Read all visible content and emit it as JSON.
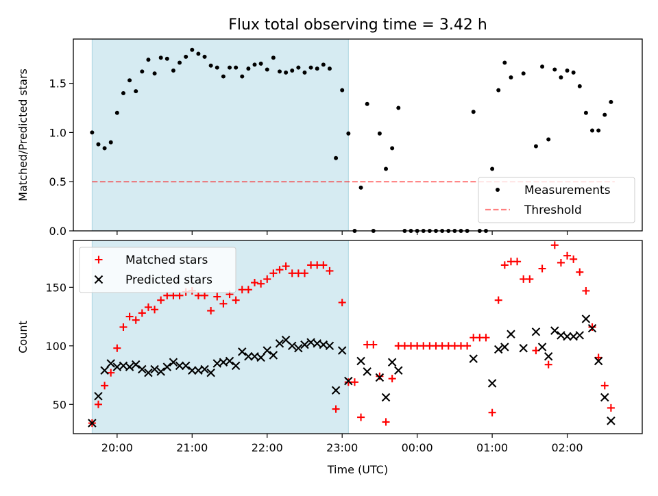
{
  "title": "Flux total observing time = 3.42 h",
  "chart_data": [
    {
      "type": "scatter",
      "panel": "top",
      "ylabel": "Matched/Predicted stars",
      "ylim": [
        0,
        1.95
      ],
      "yticks": [
        0.0,
        0.5,
        1.0,
        1.5
      ],
      "ytick_labels": [
        "0.0",
        "0.5",
        "1.0",
        "1.5"
      ],
      "shaded_span": [
        "19:40",
        "23:05"
      ],
      "threshold": 0.5,
      "threshold_x_range": [
        "19:40",
        "02:38"
      ],
      "legend": {
        "placement": "lower-right",
        "entries": [
          "Measurements",
          "Threshold"
        ]
      },
      "series": [
        {
          "name": "Measurements",
          "marker": "dot",
          "color": "#000000",
          "points": [
            [
              "19:40",
              1.0
            ],
            [
              "19:45",
              0.88
            ],
            [
              "19:50",
              0.84
            ],
            [
              "19:55",
              0.9
            ],
            [
              "20:00",
              1.2
            ],
            [
              "20:05",
              1.4
            ],
            [
              "20:10",
              1.53
            ],
            [
              "20:15",
              1.42
            ],
            [
              "20:20",
              1.62
            ],
            [
              "20:25",
              1.74
            ],
            [
              "20:30",
              1.6
            ],
            [
              "20:35",
              1.76
            ],
            [
              "20:40",
              1.75
            ],
            [
              "20:45",
              1.63
            ],
            [
              "20:50",
              1.71
            ],
            [
              "20:55",
              1.77
            ],
            [
              "21:00",
              1.84
            ],
            [
              "21:05",
              1.8
            ],
            [
              "21:10",
              1.77
            ],
            [
              "21:15",
              1.68
            ],
            [
              "21:20",
              1.66
            ],
            [
              "21:25",
              1.57
            ],
            [
              "21:30",
              1.66
            ],
            [
              "21:35",
              1.66
            ],
            [
              "21:40",
              1.57
            ],
            [
              "21:45",
              1.65
            ],
            [
              "21:50",
              1.69
            ],
            [
              "21:55",
              1.7
            ],
            [
              "22:00",
              1.64
            ],
            [
              "22:05",
              1.76
            ],
            [
              "22:10",
              1.62
            ],
            [
              "22:15",
              1.61
            ],
            [
              "22:20",
              1.63
            ],
            [
              "22:25",
              1.66
            ],
            [
              "22:30",
              1.61
            ],
            [
              "22:35",
              1.66
            ],
            [
              "22:40",
              1.65
            ],
            [
              "22:45",
              1.69
            ],
            [
              "22:50",
              1.65
            ],
            [
              "22:55",
              0.74
            ],
            [
              "23:00",
              1.43
            ],
            [
              "23:05",
              0.99
            ],
            [
              "23:10",
              0.0
            ],
            [
              "23:15",
              0.44
            ],
            [
              "23:20",
              1.29
            ],
            [
              "23:25",
              0.0
            ],
            [
              "23:30",
              0.99
            ],
            [
              "23:35",
              0.63
            ],
            [
              "23:40",
              0.84
            ],
            [
              "23:45",
              1.25
            ],
            [
              "23:50",
              0.0
            ],
            [
              "23:55",
              0.0
            ],
            [
              "00:00",
              0.0
            ],
            [
              "00:05",
              0.0
            ],
            [
              "00:10",
              0.0
            ],
            [
              "00:15",
              0.0
            ],
            [
              "00:20",
              0.0
            ],
            [
              "00:25",
              0.0
            ],
            [
              "00:30",
              0.0
            ],
            [
              "00:35",
              0.0
            ],
            [
              "00:40",
              0.0
            ],
            [
              "00:45",
              1.21
            ],
            [
              "00:50",
              0.0
            ],
            [
              "00:55",
              0.0
            ],
            [
              "01:00",
              0.63
            ],
            [
              "01:05",
              1.43
            ],
            [
              "01:10",
              1.71
            ],
            [
              "01:15",
              1.56
            ],
            [
              "01:25",
              1.6
            ],
            [
              "01:35",
              0.86
            ],
            [
              "01:40",
              1.67
            ],
            [
              "01:45",
              0.93
            ],
            [
              "01:50",
              1.64
            ],
            [
              "01:55",
              1.56
            ],
            [
              "02:00",
              1.63
            ],
            [
              "02:05",
              1.61
            ],
            [
              "02:10",
              1.47
            ],
            [
              "02:15",
              1.2
            ],
            [
              "02:20",
              1.02
            ],
            [
              "02:25",
              1.02
            ],
            [
              "02:30",
              1.18
            ],
            [
              "02:35",
              1.31
            ]
          ]
        }
      ]
    },
    {
      "type": "scatter",
      "panel": "bottom",
      "xlabel": "Time (UTC)",
      "ylabel": "Count",
      "ylim": [
        25,
        190
      ],
      "yticks": [
        50,
        100,
        150
      ],
      "ytick_labels": [
        "50",
        "100",
        "150"
      ],
      "xticks": [
        "20:00",
        "21:00",
        "22:00",
        "23:00",
        "00:00",
        "01:00",
        "02:00"
      ],
      "shaded_span": [
        "19:40",
        "23:05"
      ],
      "legend": {
        "placement": "upper-left",
        "entries": [
          "Matched stars",
          "Predicted stars"
        ]
      },
      "series": [
        {
          "name": "Matched stars",
          "marker": "plus",
          "color": "#ff0000",
          "points": [
            [
              "19:40",
              34
            ],
            [
              "19:45",
              50
            ],
            [
              "19:50",
              66
            ],
            [
              "19:55",
              77
            ],
            [
              "20:00",
              98
            ],
            [
              "20:05",
              116
            ],
            [
              "20:10",
              125
            ],
            [
              "20:15",
              122
            ],
            [
              "20:20",
              128
            ],
            [
              "20:25",
              133
            ],
            [
              "20:30",
              131
            ],
            [
              "20:35",
              139
            ],
            [
              "20:40",
              143
            ],
            [
              "20:45",
              143
            ],
            [
              "20:50",
              143
            ],
            [
              "20:55",
              146
            ],
            [
              "21:00",
              147
            ],
            [
              "21:05",
              143
            ],
            [
              "21:10",
              143
            ],
            [
              "21:15",
              130
            ],
            [
              "21:20",
              142
            ],
            [
              "21:25",
              136
            ],
            [
              "21:30",
              144
            ],
            [
              "21:35",
              139
            ],
            [
              "21:40",
              148
            ],
            [
              "21:45",
              148
            ],
            [
              "21:50",
              154
            ],
            [
              "21:55",
              153
            ],
            [
              "22:00",
              157
            ],
            [
              "22:05",
              162
            ],
            [
              "22:10",
              165
            ],
            [
              "22:15",
              168
            ],
            [
              "22:20",
              162
            ],
            [
              "22:25",
              162
            ],
            [
              "22:30",
              162
            ],
            [
              "22:35",
              169
            ],
            [
              "22:40",
              169
            ],
            [
              "22:45",
              169
            ],
            [
              "22:50",
              164
            ],
            [
              "22:55",
              46
            ],
            [
              "23:00",
              137
            ],
            [
              "23:05",
              69
            ],
            [
              "23:10",
              69
            ],
            [
              "23:15",
              39
            ],
            [
              "23:20",
              101
            ],
            [
              "23:25",
              101
            ],
            [
              "23:30",
              74
            ],
            [
              "23:35",
              35
            ],
            [
              "23:40",
              72
            ],
            [
              "23:45",
              100
            ],
            [
              "23:50",
              100
            ],
            [
              "23:55",
              100
            ],
            [
              "00:00",
              100
            ],
            [
              "00:05",
              100
            ],
            [
              "00:10",
              100
            ],
            [
              "00:15",
              100
            ],
            [
              "00:20",
              100
            ],
            [
              "00:25",
              100
            ],
            [
              "00:30",
              100
            ],
            [
              "00:35",
              100
            ],
            [
              "00:40",
              100
            ],
            [
              "00:45",
              107
            ],
            [
              "00:50",
              107
            ],
            [
              "00:55",
              107
            ],
            [
              "01:00",
              43
            ],
            [
              "01:05",
              139
            ],
            [
              "01:10",
              169
            ],
            [
              "01:15",
              172
            ],
            [
              "01:20",
              172
            ],
            [
              "01:25",
              157
            ],
            [
              "01:30",
              157
            ],
            [
              "01:35",
              96
            ],
            [
              "01:40",
              166
            ],
            [
              "01:45",
              84
            ],
            [
              "01:50",
              186
            ],
            [
              "01:55",
              171
            ],
            [
              "02:00",
              177
            ],
            [
              "02:05",
              174
            ],
            [
              "02:10",
              163
            ],
            [
              "02:15",
              147
            ],
            [
              "02:20",
              116
            ],
            [
              "02:25",
              90
            ],
            [
              "02:30",
              66
            ],
            [
              "02:35",
              47
            ]
          ]
        },
        {
          "name": "Predicted stars",
          "marker": "x",
          "color": "#000000",
          "points": [
            [
              "19:40",
              34
            ],
            [
              "19:45",
              57
            ],
            [
              "19:50",
              79
            ],
            [
              "19:55",
              85
            ],
            [
              "20:00",
              82
            ],
            [
              "20:05",
              83
            ],
            [
              "20:10",
              82
            ],
            [
              "20:15",
              84
            ],
            [
              "20:20",
              80
            ],
            [
              "20:25",
              77
            ],
            [
              "20:30",
              80
            ],
            [
              "20:35",
              78
            ],
            [
              "20:40",
              82
            ],
            [
              "20:45",
              86
            ],
            [
              "20:50",
              83
            ],
            [
              "20:55",
              83
            ],
            [
              "21:00",
              79
            ],
            [
              "21:05",
              79
            ],
            [
              "21:10",
              80
            ],
            [
              "21:15",
              77
            ],
            [
              "21:20",
              85
            ],
            [
              "21:25",
              86
            ],
            [
              "21:30",
              87
            ],
            [
              "21:35",
              83
            ],
            [
              "21:40",
              95
            ],
            [
              "21:45",
              91
            ],
            [
              "21:50",
              91
            ],
            [
              "21:55",
              90
            ],
            [
              "22:00",
              96
            ],
            [
              "22:05",
              92
            ],
            [
              "22:10",
              102
            ],
            [
              "22:15",
              105
            ],
            [
              "22:20",
              100
            ],
            [
              "22:25",
              98
            ],
            [
              "22:30",
              101
            ],
            [
              "22:35",
              103
            ],
            [
              "22:40",
              102
            ],
            [
              "22:45",
              101
            ],
            [
              "22:50",
              100
            ],
            [
              "22:55",
              62
            ],
            [
              "23:00",
              96
            ],
            [
              "23:05",
              70
            ],
            [
              "23:15",
              87
            ],
            [
              "23:20",
              78
            ],
            [
              "23:30",
              73
            ],
            [
              "23:35",
              56
            ],
            [
              "23:40",
              86
            ],
            [
              "23:45",
              79
            ],
            [
              "00:45",
              89
            ],
            [
              "01:00",
              68
            ],
            [
              "01:05",
              97
            ],
            [
              "01:10",
              99
            ],
            [
              "01:15",
              110
            ],
            [
              "01:25",
              98
            ],
            [
              "01:35",
              112
            ],
            [
              "01:40",
              99
            ],
            [
              "01:45",
              91
            ],
            [
              "01:50",
              113
            ],
            [
              "01:55",
              109
            ],
            [
              "02:00",
              108
            ],
            [
              "02:05",
              108
            ],
            [
              "02:10",
              109
            ],
            [
              "02:15",
              123
            ],
            [
              "02:20",
              115
            ],
            [
              "02:25",
              87
            ],
            [
              "02:30",
              56
            ],
            [
              "02:35",
              36
            ]
          ]
        }
      ]
    }
  ]
}
